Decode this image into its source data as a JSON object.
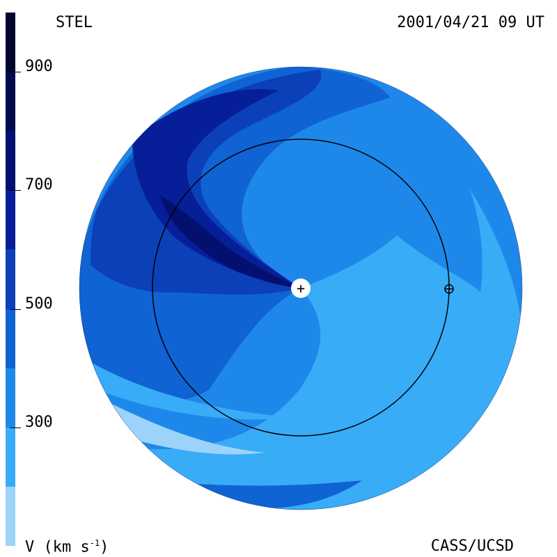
{
  "header": {
    "left": "STEL",
    "right": "2001/04/21 09 UT"
  },
  "footer": {
    "unit_prefix": "V (km s",
    "unit_exp": "-1",
    "unit_suffix": ")",
    "credit": "CASS/UCSD"
  },
  "colorbar": {
    "range": [
      100,
      1000
    ],
    "ticks": [
      {
        "label": "900",
        "value": 900
      },
      {
        "label": "700",
        "value": 700
      },
      {
        "label": "500",
        "value": 500
      },
      {
        "label": "300",
        "value": 300
      }
    ],
    "bands": [
      {
        "from": 100,
        "to": 200,
        "color": "#9cd3fb"
      },
      {
        "from": 200,
        "to": 300,
        "color": "#38acf7"
      },
      {
        "from": 300,
        "to": 400,
        "color": "#1e88ea"
      },
      {
        "from": 400,
        "to": 500,
        "color": "#0f63d3"
      },
      {
        "from": 500,
        "to": 600,
        "color": "#0b40b8"
      },
      {
        "from": 600,
        "to": 700,
        "color": "#061e98"
      },
      {
        "from": 700,
        "to": 800,
        "color": "#031070"
      },
      {
        "from": 800,
        "to": 900,
        "color": "#020a4e"
      },
      {
        "from": 900,
        "to": 1000,
        "color": "#010630"
      }
    ]
  },
  "map": {
    "sun_symbol": "+",
    "earth_symbol": "⊕"
  }
}
